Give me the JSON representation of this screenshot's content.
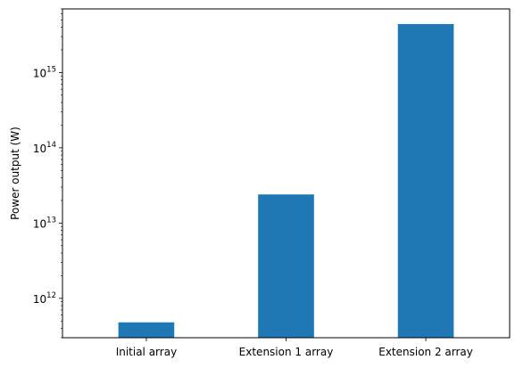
{
  "chart_data": {
    "type": "bar",
    "categories": [
      "Initial array",
      "Extension 1 array",
      "Extension 2 array"
    ],
    "values": [
      480000000000.0,
      24000000000000.0,
      4400000000000000.0
    ],
    "title": "",
    "xlabel": "",
    "ylabel": "Power output (W)",
    "yscale": "log",
    "ylim": [
      300000000000.0,
      7000000000000000.0
    ],
    "yticks": [
      {
        "value": 1000000000000.0,
        "base": "10",
        "exp": "12"
      },
      {
        "value": 10000000000000.0,
        "base": "10",
        "exp": "13"
      },
      {
        "value": 100000000000000.0,
        "base": "10",
        "exp": "14"
      },
      {
        "value": 1000000000000000.0,
        "base": "10",
        "exp": "15"
      }
    ],
    "grid": false,
    "bar_color": "#1f77b4"
  }
}
